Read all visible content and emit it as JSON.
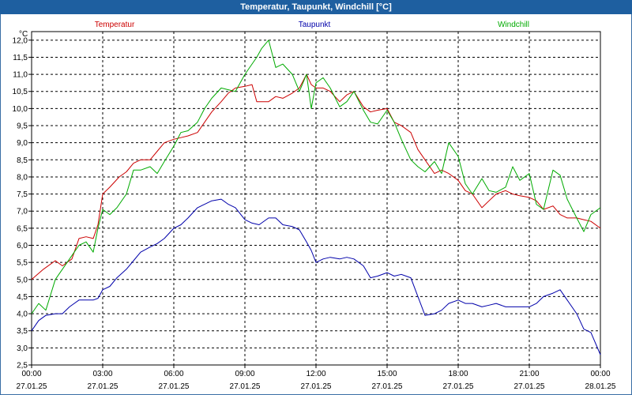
{
  "window": {
    "title": "Temperatur, Taupunkt, Windchill [°C]"
  },
  "chart_data": {
    "type": "line",
    "title": "Temperatur, Taupunkt, Windchill [°C]",
    "ylabel": "°C",
    "xlabel": "",
    "ylim": [
      2.5,
      12.25
    ],
    "xlim": [
      0,
      24
    ],
    "grid": true,
    "yticks": [
      "2,5",
      "3,0",
      "3,5",
      "4,0",
      "4,5",
      "5,0",
      "5,5",
      "6,0",
      "6,5",
      "7,0",
      "7,5",
      "8,0",
      "8,5",
      "9,0",
      "9,5",
      "10,0",
      "10,5",
      "11,0",
      "11,5",
      "12,0"
    ],
    "xticks": [
      {
        "time": "00:00",
        "date": "27.01.25"
      },
      {
        "time": "03:00",
        "date": "27.01.25"
      },
      {
        "time": "06:00",
        "date": "27.01.25"
      },
      {
        "time": "09:00",
        "date": "27.01.25"
      },
      {
        "time": "12:00",
        "date": "27.01.25"
      },
      {
        "time": "15:00",
        "date": "27.01.25"
      },
      {
        "time": "18:00",
        "date": "27.01.25"
      },
      {
        "time": "21:00",
        "date": "27.01.25"
      },
      {
        "time": "00:00",
        "date": "28.01.25"
      }
    ],
    "series": [
      {
        "name": "Temperatur",
        "color": "#cc0000",
        "x": [
          0,
          0.5,
          1,
          1.3,
          1.7,
          2,
          2.3,
          2.6,
          2.8,
          3,
          3.3,
          3.7,
          4,
          4.3,
          4.6,
          5,
          5.3,
          5.6,
          6,
          6.3,
          6.6,
          7,
          7.3,
          7.6,
          8,
          8.3,
          8.6,
          9,
          9.3,
          9.5,
          9.7,
          10,
          10.3,
          10.6,
          11,
          11.3,
          11.6,
          11.8,
          12,
          12.3,
          12.6,
          13,
          13.3,
          13.6,
          14,
          14.3,
          14.6,
          15,
          15.3,
          15.6,
          16,
          16.3,
          16.6,
          17,
          17.3,
          17.6,
          18,
          18.3,
          18.6,
          19,
          19.3,
          19.6,
          20,
          20.3,
          20.6,
          21,
          21.3,
          21.6,
          22,
          22.3,
          22.6,
          23,
          23.3,
          23.6,
          24
        ],
        "values": [
          5.0,
          5.3,
          5.55,
          5.4,
          5.6,
          6.2,
          6.25,
          6.2,
          6.6,
          7.5,
          7.7,
          8.0,
          8.15,
          8.4,
          8.5,
          8.5,
          8.75,
          9.0,
          9.1,
          9.15,
          9.2,
          9.3,
          9.6,
          9.9,
          10.2,
          10.45,
          10.6,
          10.65,
          10.7,
          10.2,
          10.2,
          10.2,
          10.35,
          10.3,
          10.45,
          10.6,
          11.0,
          10.7,
          10.6,
          10.6,
          10.5,
          10.2,
          10.4,
          10.5,
          10.05,
          9.9,
          9.95,
          10.0,
          9.6,
          9.5,
          9.3,
          8.8,
          8.5,
          8.1,
          8.2,
          8.1,
          7.9,
          7.6,
          7.5,
          7.1,
          7.3,
          7.5,
          7.6,
          7.5,
          7.45,
          7.4,
          7.3,
          7.05,
          7.15,
          6.9,
          6.8,
          6.8,
          6.75,
          6.7,
          6.5
        ]
      },
      {
        "name": "Taupunkt",
        "color": "#0000aa",
        "x": [
          0,
          0.3,
          0.6,
          1,
          1.3,
          1.6,
          2,
          2.3,
          2.6,
          2.8,
          3,
          3.3,
          3.6,
          4,
          4.3,
          4.6,
          5,
          5.3,
          5.6,
          6,
          6.3,
          6.6,
          7,
          7.3,
          7.6,
          8,
          8.3,
          8.6,
          9,
          9.3,
          9.6,
          10,
          10.3,
          10.6,
          11,
          11.3,
          11.6,
          11.8,
          12,
          12.3,
          12.6,
          13,
          13.3,
          13.6,
          14,
          14.3,
          14.6,
          15,
          15.3,
          15.6,
          16,
          16.3,
          16.6,
          17,
          17.3,
          17.6,
          18,
          18.3,
          18.6,
          19,
          19.3,
          19.6,
          20,
          20.3,
          20.6,
          21,
          21.3,
          21.6,
          22,
          22.3,
          22.6,
          23,
          23.3,
          23.6,
          24
        ],
        "values": [
          3.5,
          3.8,
          3.95,
          4.0,
          4.0,
          4.2,
          4.4,
          4.4,
          4.4,
          4.45,
          4.7,
          4.8,
          5.05,
          5.3,
          5.55,
          5.8,
          5.95,
          6.05,
          6.2,
          6.5,
          6.6,
          6.8,
          7.1,
          7.2,
          7.3,
          7.35,
          7.2,
          7.1,
          6.75,
          6.65,
          6.6,
          6.8,
          6.8,
          6.6,
          6.55,
          6.45,
          6.1,
          5.85,
          5.5,
          5.6,
          5.65,
          5.6,
          5.65,
          5.6,
          5.4,
          5.05,
          5.1,
          5.2,
          5.1,
          5.15,
          5.05,
          4.5,
          3.95,
          4.0,
          4.1,
          4.3,
          4.4,
          4.3,
          4.3,
          4.2,
          4.25,
          4.3,
          4.2,
          4.2,
          4.2,
          4.2,
          4.3,
          4.5,
          4.6,
          4.7,
          4.4,
          4.0,
          3.55,
          3.45,
          2.8
        ]
      },
      {
        "name": "Windchill",
        "color": "#00aa00",
        "x": [
          0,
          0.3,
          0.6,
          1,
          1.3,
          1.6,
          2,
          2.3,
          2.6,
          2.8,
          3,
          3.3,
          3.6,
          4,
          4.3,
          4.6,
          5,
          5.3,
          5.6,
          6,
          6.3,
          6.6,
          7,
          7.3,
          7.6,
          8,
          8.3,
          8.6,
          9,
          9.3,
          9.5,
          9.7,
          10,
          10.3,
          10.6,
          11,
          11.3,
          11.6,
          11.8,
          12,
          12.3,
          12.6,
          13,
          13.3,
          13.6,
          14,
          14.3,
          14.6,
          15,
          15.3,
          15.6,
          16,
          16.3,
          16.6,
          17,
          17.3,
          17.6,
          18,
          18.3,
          18.6,
          19,
          19.3,
          19.6,
          20,
          20.3,
          20.6,
          21,
          21.3,
          21.6,
          22,
          22.3,
          22.6,
          23,
          23.3,
          23.6,
          24
        ],
        "values": [
          4.0,
          4.3,
          4.1,
          5.0,
          5.3,
          5.6,
          6.0,
          6.1,
          5.8,
          6.5,
          7.05,
          6.9,
          7.1,
          7.5,
          8.2,
          8.2,
          8.3,
          8.1,
          8.45,
          8.9,
          9.3,
          9.35,
          9.6,
          10.0,
          10.3,
          10.6,
          10.55,
          10.5,
          11.0,
          11.3,
          11.5,
          11.75,
          12.0,
          11.2,
          11.3,
          11.0,
          10.5,
          11.0,
          10.0,
          10.75,
          10.9,
          10.6,
          10.05,
          10.2,
          10.5,
          9.95,
          9.6,
          9.55,
          9.95,
          9.6,
          9.1,
          8.5,
          8.3,
          8.15,
          8.45,
          8.1,
          9.0,
          8.6,
          7.8,
          7.5,
          7.95,
          7.6,
          7.55,
          7.7,
          8.3,
          7.9,
          8.1,
          7.2,
          7.05,
          8.2,
          8.05,
          7.35,
          6.8,
          6.4,
          6.9,
          7.1
        ]
      }
    ],
    "legend": {
      "placement": "top"
    }
  }
}
